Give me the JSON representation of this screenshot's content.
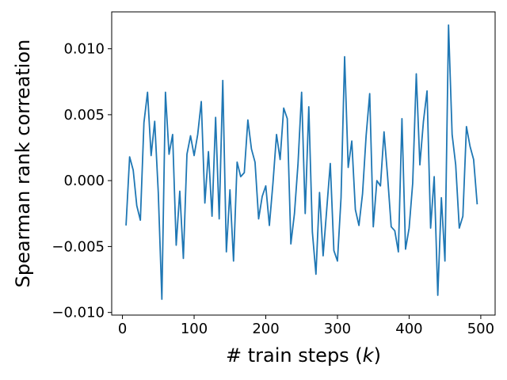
{
  "chart_data": {
    "type": "line",
    "title": "",
    "xlabel_prefix": "# train steps (",
    "xlabel_var": "k",
    "xlabel_suffix": ")",
    "ylabel": "Spearman rank correation",
    "xlim": [
      -15,
      520
    ],
    "ylim": [
      -0.0102,
      0.0128
    ],
    "xticks": [
      0,
      100,
      200,
      300,
      400,
      500
    ],
    "xtick_labels": [
      "0",
      "100",
      "200",
      "300",
      "400",
      "500"
    ],
    "yticks": [
      -0.01,
      -0.005,
      0.0,
      0.005,
      0.01
    ],
    "ytick_labels": [
      "−0.010",
      "−0.005",
      "0.000",
      "0.005",
      "0.010"
    ],
    "grid": false,
    "line_color": "#1f77b4",
    "series": [
      {
        "x": [
          5,
          10,
          15,
          20,
          25,
          30,
          35,
          40,
          45,
          50,
          55,
          60,
          65,
          70,
          75,
          80,
          85,
          90,
          95,
          100,
          105,
          110,
          115,
          120,
          125,
          130,
          135,
          140,
          145,
          150,
          155,
          160,
          165,
          170,
          175,
          180,
          185,
          190,
          195,
          200,
          205,
          210,
          215,
          220,
          225,
          230,
          235,
          240,
          245,
          250,
          255,
          260,
          265,
          270,
          275,
          280,
          285,
          290,
          295,
          300,
          305,
          310,
          315,
          320,
          325,
          330,
          335,
          340,
          345,
          350,
          355,
          360,
          365,
          370,
          375,
          380,
          385,
          390,
          395,
          400,
          405,
          410,
          415,
          420,
          425,
          430,
          435,
          440,
          445,
          450,
          455,
          460,
          465,
          470,
          475,
          480,
          485,
          490,
          495
        ],
        "y": [
          -0.0034,
          0.0018,
          0.0008,
          -0.0019,
          -0.003,
          0.0044,
          0.0067,
          0.0019,
          0.0045,
          -0.0009,
          -0.009,
          0.0067,
          0.002,
          0.0035,
          -0.0049,
          -0.0008,
          -0.0059,
          0.002,
          0.0034,
          0.0019,
          0.0035,
          0.006,
          -0.0017,
          0.0022,
          -0.0027,
          0.0048,
          -0.0029,
          0.0076,
          -0.0054,
          -0.0007,
          -0.0061,
          0.0014,
          0.0003,
          0.0006,
          0.0046,
          0.0024,
          0.0014,
          -0.0029,
          -0.0012,
          -0.0004,
          -0.0034,
          -0.0002,
          0.0035,
          0.0016,
          0.0055,
          0.0047,
          -0.0048,
          -0.0025,
          0.0013,
          0.0067,
          -0.0025,
          0.0056,
          -0.0039,
          -0.0071,
          -0.0009,
          -0.0057,
          -0.0022,
          0.0013,
          -0.0053,
          -0.0061,
          -0.0013,
          0.0094,
          0.001,
          0.003,
          -0.0022,
          -0.0034,
          -0.001,
          0.0034,
          0.0066,
          -0.0035,
          0.0,
          -0.0004,
          0.0037,
          0.0003,
          -0.0035,
          -0.0038,
          -0.0054,
          0.0047,
          -0.0052,
          -0.0036,
          -0.0002,
          0.0081,
          0.0012,
          0.0045,
          0.0068,
          -0.0036,
          0.0003,
          -0.0087,
          -0.0013,
          -0.0061,
          0.0118,
          0.0035,
          0.0012,
          -0.0036,
          -0.0027,
          0.0041,
          0.0026,
          0.0016,
          -0.0018
        ]
      }
    ]
  }
}
